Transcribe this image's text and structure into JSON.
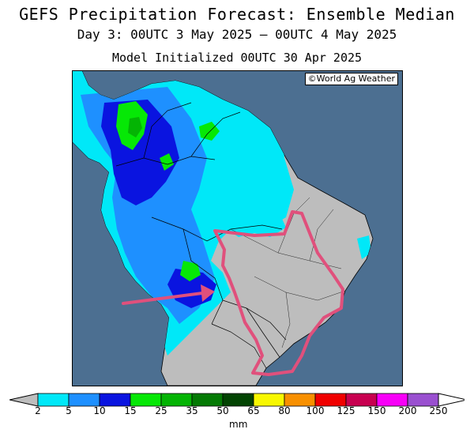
{
  "title": "GEFS Precipitation Forecast: Ensemble Median",
  "subtitle": "Day 3: 00UTC 3 May 2025 — 00UTC 4 May 2025",
  "init_line": "Model Initialized 00UTC 30 Apr 2025",
  "credit": "©World Ag Weather",
  "colorbar": {
    "unit": "mm",
    "ticks": [
      "2",
      "5",
      "10",
      "15",
      "25",
      "35",
      "50",
      "65",
      "80",
      "100",
      "125",
      "150",
      "200",
      "250"
    ],
    "colors": [
      "#00e8f8",
      "#1e90ff",
      "#0a14e0",
      "#06e806",
      "#04b404",
      "#047a04",
      "#024402",
      "#f8f800",
      "#f89000",
      "#f00000",
      "#c80050",
      "#f800f8",
      "#9a50d0"
    ],
    "under_color": "#bdbdbd",
    "over_color": "#ffffff"
  },
  "map_colors": {
    "ocean": "#4c6f91",
    "land_dry": "#bdbdbd",
    "annotation": "#e0507c"
  }
}
